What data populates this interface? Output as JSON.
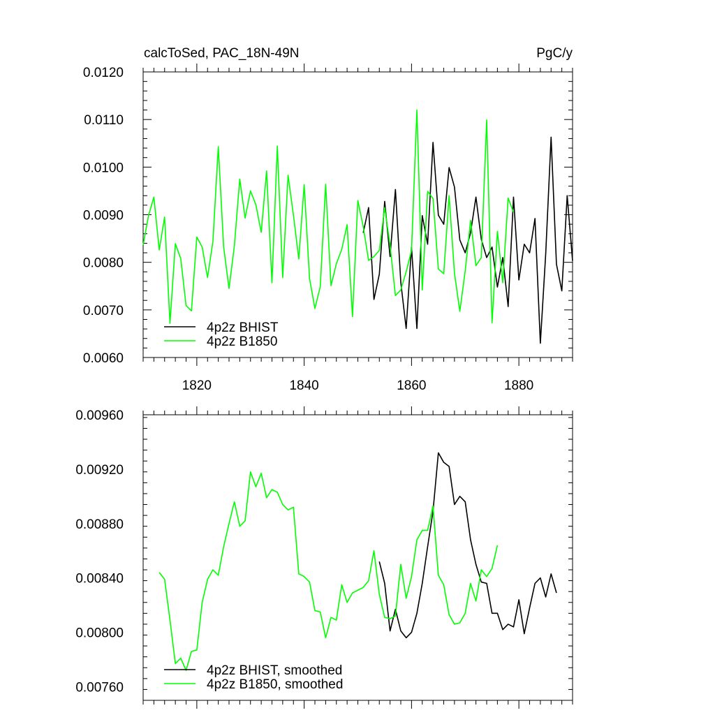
{
  "chart_data": [
    {
      "type": "line",
      "title_left": "calcToSed, PAC_18N-49N",
      "title_right": "PgC/y",
      "xlim": [
        1810,
        1890
      ],
      "ylim": [
        0.006,
        0.012
      ],
      "x_ticks": [
        "1820",
        "1840",
        "1860",
        "1880"
      ],
      "y_ticks": [
        "0.0060",
        "0.0070",
        "0.0080",
        "0.0090",
        "0.0100",
        "0.0110",
        "0.0120"
      ],
      "legend_position": "bottom-left",
      "series": [
        {
          "name": "4p2z BHIST",
          "color": "#000000",
          "x_start": 1851,
          "values": [
            0.00862,
            0.00915,
            0.00722,
            0.00775,
            0.00928,
            0.00812,
            0.00953,
            0.00758,
            0.00661,
            0.00832,
            0.00661,
            0.00898,
            0.00838,
            0.01052,
            0.00899,
            0.0088,
            0.00999,
            0.00958,
            0.00847,
            0.0082,
            0.00862,
            0.00937,
            0.00848,
            0.0081,
            0.00832,
            0.00748,
            0.0081,
            0.00707,
            0.00937,
            0.00763,
            0.00838,
            0.0082,
            0.00892,
            0.0063,
            0.00818,
            0.01063,
            0.00796,
            0.0074,
            0.0094,
            0.00803
          ]
        },
        {
          "name": "4p2z B1850",
          "color": "#00ff00",
          "x_start": 1810,
          "values": [
            0.00836,
            0.00898,
            0.00937,
            0.00826,
            0.00895,
            0.00672,
            0.00839,
            0.00808,
            0.00709,
            0.00698,
            0.00853,
            0.00832,
            0.00768,
            0.00844,
            0.01043,
            0.00832,
            0.00745,
            0.00835,
            0.00975,
            0.00893,
            0.0095,
            0.00921,
            0.00863,
            0.00992,
            0.00757,
            0.01044,
            0.00768,
            0.00983,
            0.00899,
            0.00807,
            0.00963,
            0.00766,
            0.00703,
            0.00749,
            0.00964,
            0.00751,
            0.00797,
            0.00827,
            0.00879,
            0.00686,
            0.0093,
            0.00875,
            0.00804,
            0.00812,
            0.00825,
            0.00915,
            0.00836,
            0.0073,
            0.00742,
            0.0078,
            0.00825,
            0.0112,
            0.00742,
            0.00949,
            0.00934,
            0.00786,
            0.00776,
            0.0094,
            0.00777,
            0.00697,
            0.00782,
            0.00888,
            0.00793,
            0.0081,
            0.01099,
            0.00673,
            0.00865,
            0.00757,
            0.00935,
            0.00905
          ]
        }
      ]
    },
    {
      "type": "line",
      "xlim": [
        1810,
        1890
      ],
      "ylim": [
        0.0075,
        0.0096
      ],
      "y_ticks": [
        "0.00760",
        "0.00800",
        "0.00840",
        "0.00880",
        "0.00920",
        "0.00960"
      ],
      "legend_position": "bottom-left",
      "series": [
        {
          "name": "4p2z BHIST, smoothed",
          "color": "#000000",
          "x_start": 1854,
          "values": [
            0.00852,
            0.00836,
            0.00801,
            0.00817,
            0.00801,
            0.00796,
            0.008,
            0.00814,
            0.00836,
            0.00863,
            0.00889,
            0.00932,
            0.00925,
            0.00922,
            0.00894,
            0.009,
            0.00896,
            0.00868,
            0.0085,
            0.00837,
            0.00836,
            0.00814,
            0.00814,
            0.00802,
            0.00806,
            0.00804,
            0.00824,
            0.00799,
            0.00818,
            0.00836,
            0.0084,
            0.00826,
            0.00843,
            0.00829
          ]
        },
        {
          "name": "4p2z B1850, smoothed",
          "color": "#00ff00",
          "x_start": 1813,
          "values": [
            0.00844,
            0.00839,
            0.00809,
            0.00777,
            0.00781,
            0.00772,
            0.00786,
            0.00787,
            0.00822,
            0.00839,
            0.00846,
            0.00842,
            0.00863,
            0.0088,
            0.00896,
            0.00878,
            0.00882,
            0.00918,
            0.00907,
            0.00917,
            0.00899,
            0.00905,
            0.00903,
            0.00894,
            0.0089,
            0.00892,
            0.00843,
            0.00841,
            0.00837,
            0.00816,
            0.00815,
            0.00796,
            0.00811,
            0.00809,
            0.00835,
            0.00822,
            0.00829,
            0.00831,
            0.00833,
            0.00838,
            0.0086,
            0.00828,
            0.00811,
            0.0081,
            0.00812,
            0.0085,
            0.00825,
            0.00841,
            0.00868,
            0.00875,
            0.00875,
            0.00893,
            0.00842,
            0.00835,
            0.00813,
            0.00806,
            0.00807,
            0.00814,
            0.00836,
            0.00823,
            0.00846,
            0.00841,
            0.00847,
            0.00864
          ]
        }
      ]
    }
  ]
}
